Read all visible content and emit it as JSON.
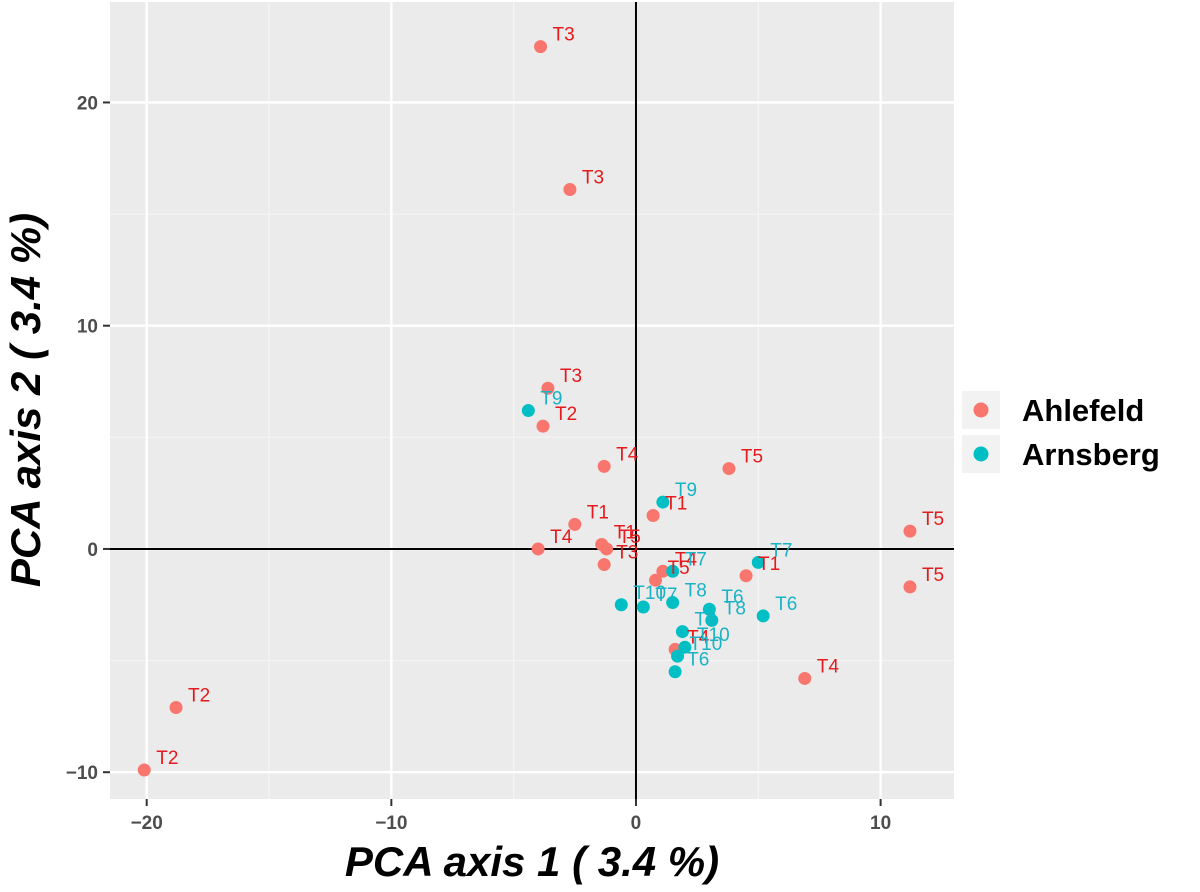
{
  "chart_data": {
    "type": "scatter",
    "xlabel": "PCA axis 1 ( 3.4 %)",
    "ylabel": "PCA axis 2 ( 3.4 %)",
    "xlim": [
      -21.5,
      13
    ],
    "ylim": [
      -11.2,
      24.5
    ],
    "x_ticks": [
      -20,
      -10,
      0,
      10
    ],
    "y_ticks": [
      -10,
      0,
      10,
      20
    ],
    "x_tick_labels": [
      "−20",
      "−10",
      "0",
      "10"
    ],
    "y_tick_labels": [
      "−10",
      "0",
      "10",
      "20"
    ],
    "grid": true,
    "reference_lines": {
      "x": 0,
      "y": 0
    },
    "legend_position": "right",
    "series": [
      {
        "name": "Ahlefeld",
        "color": "#f8766d",
        "label_color": "#e41a1c",
        "points": [
          {
            "x": -3.9,
            "y": 22.5,
            "label": "T3"
          },
          {
            "x": -2.7,
            "y": 16.1,
            "label": "T3"
          },
          {
            "x": -3.6,
            "y": 7.2,
            "label": "T3"
          },
          {
            "x": -3.8,
            "y": 5.5,
            "label": "T2"
          },
          {
            "x": -1.3,
            "y": 3.7,
            "label": "T4"
          },
          {
            "x": 3.8,
            "y": 3.6,
            "label": "T5"
          },
          {
            "x": 0.7,
            "y": 1.5,
            "label": "T1"
          },
          {
            "x": -2.5,
            "y": 1.1,
            "label": "T1"
          },
          {
            "x": -1.4,
            "y": 0.2,
            "label": "T1"
          },
          {
            "x": -4.0,
            "y": 0.0,
            "label": "T4"
          },
          {
            "x": -1.2,
            "y": 0.0,
            "label": "T5"
          },
          {
            "x": 1.1,
            "y": -1.0,
            "label": "T4"
          },
          {
            "x": -1.3,
            "y": -0.7,
            "label": "T3"
          },
          {
            "x": 0.8,
            "y": -1.4,
            "label": "T5"
          },
          {
            "x": 4.5,
            "y": -1.2,
            "label": "T1"
          },
          {
            "x": 11.2,
            "y": 0.8,
            "label": "T5"
          },
          {
            "x": 11.2,
            "y": -1.7,
            "label": "T5"
          },
          {
            "x": 1.6,
            "y": -4.5,
            "label": "T4"
          },
          {
            "x": 6.9,
            "y": -5.8,
            "label": "T4"
          },
          {
            "x": -18.8,
            "y": -7.1,
            "label": "T2"
          },
          {
            "x": -20.1,
            "y": -9.9,
            "label": "T2"
          }
        ]
      },
      {
        "name": "Arnsberg",
        "color": "#00bfc4",
        "label_color": "#1ab3c6",
        "points": [
          {
            "x": -4.4,
            "y": 6.2,
            "label": "T9"
          },
          {
            "x": 1.1,
            "y": 2.1,
            "label": "T9"
          },
          {
            "x": 1.5,
            "y": -1.0,
            "label": "T7"
          },
          {
            "x": 5.0,
            "y": -0.6,
            "label": "T7"
          },
          {
            "x": 1.5,
            "y": -2.4,
            "label": "T8"
          },
          {
            "x": 3.0,
            "y": -2.7,
            "label": "T6"
          },
          {
            "x": 5.2,
            "y": -3.0,
            "label": "T6"
          },
          {
            "x": 3.1,
            "y": -3.2,
            "label": "T8"
          },
          {
            "x": -0.6,
            "y": -2.5,
            "label": "T10"
          },
          {
            "x": 0.3,
            "y": -2.6,
            "label": "T7"
          },
          {
            "x": 1.9,
            "y": -3.7,
            "label": "T6"
          },
          {
            "x": 2.0,
            "y": -4.4,
            "label": "T10"
          },
          {
            "x": 1.7,
            "y": -4.8,
            "label": "T10"
          },
          {
            "x": 1.6,
            "y": -5.5,
            "label": "T6"
          }
        ]
      }
    ]
  }
}
